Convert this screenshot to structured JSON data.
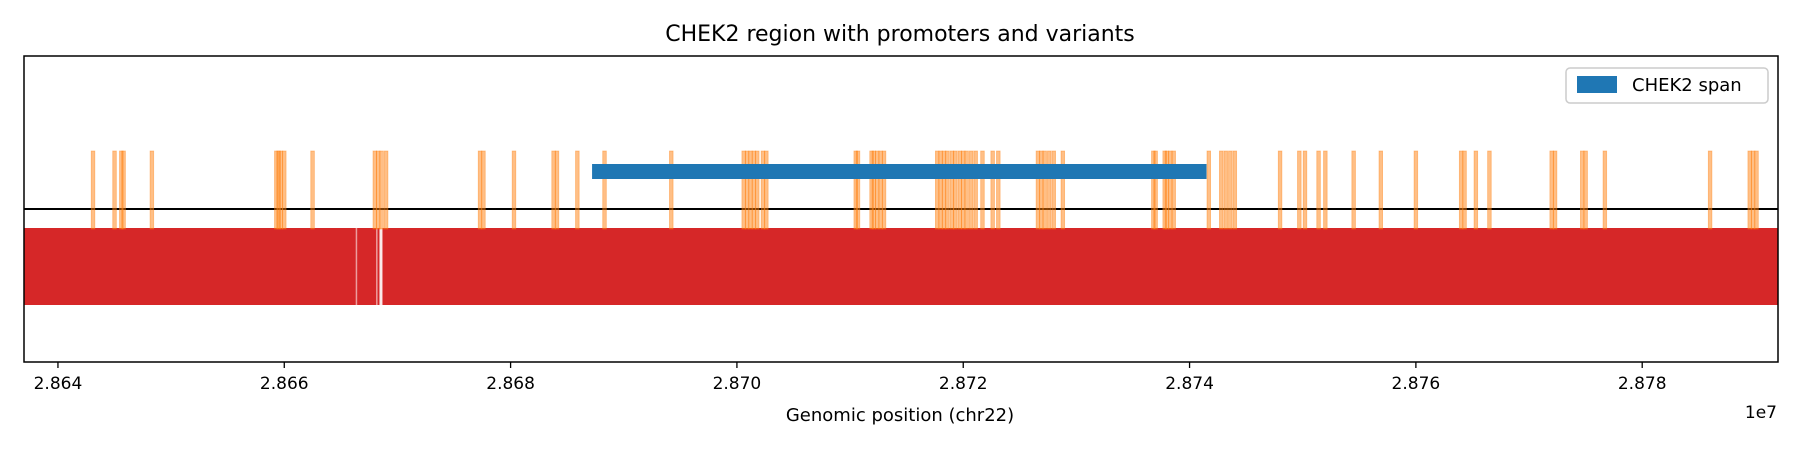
{
  "chart_data": {
    "type": "genomic-track",
    "title": "CHEK2 region with promoters and variants",
    "xlabel": "Genomic position (chr22)",
    "x_offset_label": "1e7",
    "xlim": [
      2.8637,
      2.8792
    ],
    "xticks": [
      2.864,
      2.866,
      2.868,
      2.87,
      2.872,
      2.874,
      2.876,
      2.878
    ],
    "xtick_labels": [
      "2.864",
      "2.866",
      "2.868",
      "2.870",
      "2.872",
      "2.874",
      "2.876",
      "2.878"
    ],
    "legend": {
      "position": "top-right",
      "entries": [
        {
          "label": "CHEK2 span",
          "color": "#1f77b4"
        }
      ]
    },
    "gene_span": {
      "name": "CHEK2 span",
      "start": 2.86872,
      "end": 2.87415,
      "color": "#1f77b4"
    },
    "baseline": {
      "color": "#000000"
    },
    "promoter_track": {
      "color": "#d62728",
      "start": 2.8637,
      "end": 2.8792,
      "gaps": [
        2.86664,
        2.86682,
        2.86685
      ]
    },
    "variants": {
      "color": "#ff7f0e",
      "positions": [
        2.86431,
        2.8645,
        2.86456,
        2.86458,
        2.86483,
        2.86593,
        2.86595,
        2.86597,
        2.866,
        2.86625,
        2.8668,
        2.86683,
        2.86686,
        2.8669,
        2.86773,
        2.86776,
        2.86803,
        2.86838,
        2.86841,
        2.86859,
        2.86883,
        2.86942,
        2.87006,
        2.87009,
        2.87012,
        2.87015,
        2.87018,
        2.87023,
        2.87026,
        2.87105,
        2.87107,
        2.87119,
        2.87121,
        2.87124,
        2.87127,
        2.8713,
        2.87177,
        2.8718,
        2.87183,
        2.87186,
        2.8719,
        2.87193,
        2.87197,
        2.872,
        2.87203,
        2.87207,
        2.87211,
        2.87217,
        2.87226,
        2.87231,
        2.87266,
        2.87269,
        2.87272,
        2.87276,
        2.8728,
        2.87288,
        2.87368,
        2.8737,
        2.87378,
        2.8738,
        2.87383,
        2.87386,
        2.87417,
        2.87428,
        2.87432,
        2.87436,
        2.8744,
        2.8748,
        2.87497,
        2.87502,
        2.87514,
        2.8752,
        2.87545,
        2.87569,
        2.876,
        2.8764,
        2.87643,
        2.87653,
        2.87665,
        2.8772,
        2.87723,
        2.87747,
        2.8775,
        2.87767,
        2.8786,
        2.87895,
        2.87898,
        2.87901
      ]
    }
  }
}
